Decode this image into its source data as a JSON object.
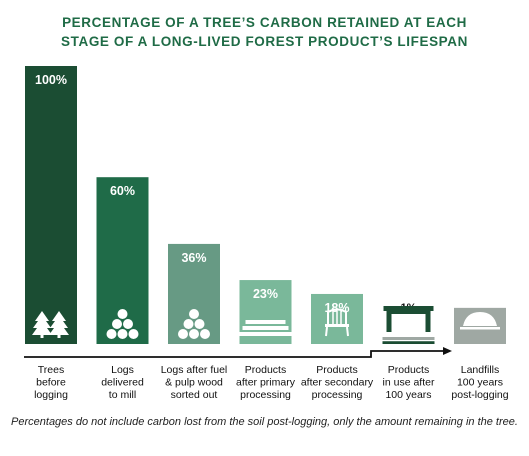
{
  "title_line1": "PERCENTAGE OF A TREE’S CARBON RETAINED AT EACH",
  "title_line2": "STAGE OF A LONG-LIVED FOREST PRODUCT’S LIFESPAN",
  "footnote": "Percentages do not include carbon lost from the soil post-logging, only the amount remaining in the tree.",
  "colors": {
    "title": "#1f6b46",
    "bars": [
      "#1b4d33",
      "#1f6b48",
      "#679a84",
      "#7ab89a",
      "#7ab89a",
      "#1b4d33",
      "#9fa8a3"
    ]
  },
  "chart_data": {
    "type": "bar",
    "title": "PERCENTAGE OF A TREE’S CARBON RETAINED AT EACH STAGE OF A LONG-LIVED FOREST PRODUCT’S LIFESPAN",
    "ylim": [
      0,
      100
    ],
    "grid": false,
    "categories": [
      "Trees before logging",
      "Logs delivered to mill",
      "Logs after fuel & pulp wood sorted out",
      "Products after primary processing",
      "Products after secondary processing",
      "Products in use after 100 years",
      "Landfills 100 years post-logging"
    ],
    "category_lines": [
      [
        "Trees",
        "before",
        "logging"
      ],
      [
        "Logs",
        "delivered",
        "to mill"
      ],
      [
        "Logs after fuel",
        "& pulp wood",
        "sorted out"
      ],
      [
        "Products",
        "after primary",
        "processing"
      ],
      [
        "Products",
        "after secondary",
        "processing"
      ],
      [
        "Products",
        "in use after",
        "100 years"
      ],
      [
        "Landfills",
        "100 years",
        "post-logging"
      ]
    ],
    "values": [
      100,
      60,
      36,
      23,
      18,
      1,
      13
    ],
    "value_labels": [
      "100%",
      "60%",
      "36%",
      "23%",
      "18%",
      "1%",
      "13%"
    ],
    "icons": [
      "trees-icon",
      "log-pile-icon",
      "log-pile-icon",
      "lumber-stack-icon",
      "chair-icon",
      "table-icon",
      "landfill-icon"
    ]
  }
}
